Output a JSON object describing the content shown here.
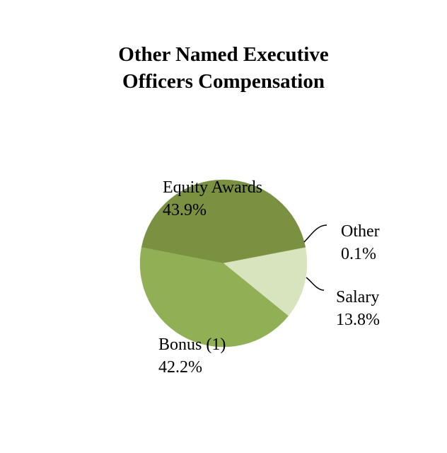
{
  "chart_data": {
    "type": "pie",
    "title_lines": [
      "Other Named Executive",
      "Officers Compensation"
    ],
    "slices": [
      {
        "label": "Equity Awards",
        "value": 43.9,
        "value_label": "43.9%",
        "color": "#7a9142"
      },
      {
        "label": "Other",
        "value": 0.1,
        "value_label": "0.1%",
        "color": "#c7d9a5"
      },
      {
        "label": "Salary",
        "value": 13.8,
        "value_label": "13.8%",
        "color": "#d7e4bd"
      },
      {
        "label": "Bonus (1)",
        "value": 42.2,
        "value_label": "42.2%",
        "color": "#91b055"
      }
    ],
    "legend": "none"
  }
}
